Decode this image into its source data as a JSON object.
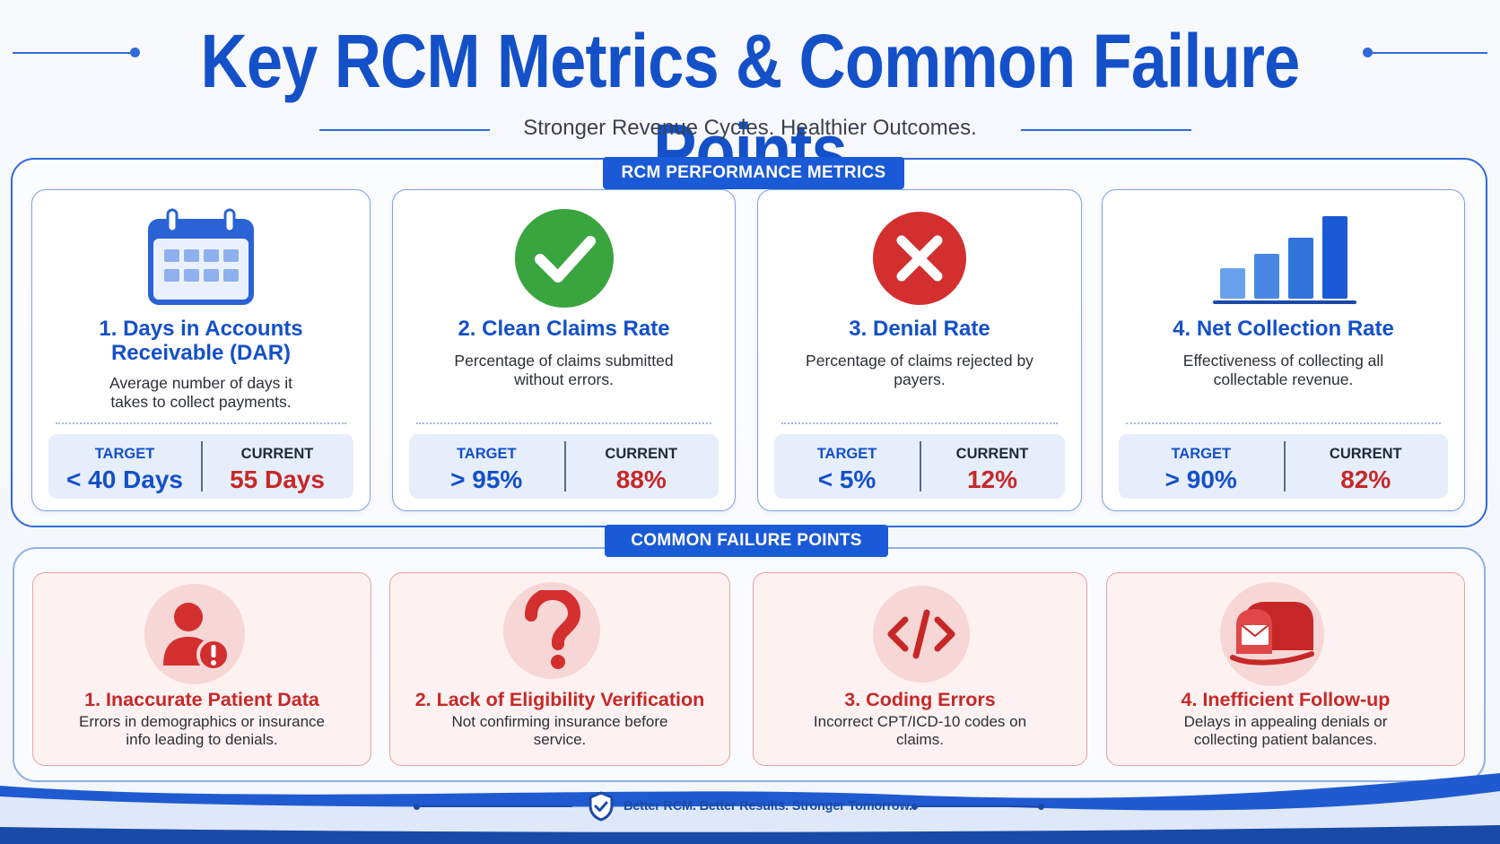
{
  "header": {
    "title": "Key RCM Metrics & Common Failure Points",
    "subtitle": "Stronger Revenue Cycles. Healthier Outcomes."
  },
  "metrics_section": {
    "label": "RCM PERFORMANCE METRICS",
    "target_label": "TARGET",
    "current_label": "CURRENT",
    "cards": [
      {
        "icon": "calendar-icon",
        "title": "1. Days in Accounts Receivable (DAR)",
        "description": "Average number of days it takes to collect payments.",
        "target": "< 40 Days",
        "current": "55 Days"
      },
      {
        "icon": "checkmark-icon",
        "title": "2. Clean Claims Rate",
        "description": "Percentage of claims submitted without errors.",
        "target": "> 95%",
        "current": "88%"
      },
      {
        "icon": "x-mark-icon",
        "title": "3. Denial Rate",
        "description": "Percentage of claims rejected by payers.",
        "target": "< 5%",
        "current": "12%"
      },
      {
        "icon": "bar-chart-icon",
        "title": "4. Net Collection Rate",
        "description": "Effectiveness of collecting all collectable revenue.",
        "target": "> 90%",
        "current": "82%"
      }
    ]
  },
  "failures_section": {
    "label": "COMMON FAILURE POINTS",
    "cards": [
      {
        "icon": "user-alert-icon",
        "title": "1. Inaccurate Patient Data",
        "description": "Errors in demographics or insurance info leading to denials."
      },
      {
        "icon": "question-mark-icon",
        "title": "2. Lack of Eligibility Verification",
        "description": "Not confirming insurance before service."
      },
      {
        "icon": "code-icon",
        "title": "3. Coding Errors",
        "description": "Incorrect CPT/ICD-10 codes on claims."
      },
      {
        "icon": "mailbox-icon",
        "title": "4. Inefficient Follow-up",
        "description": "Delays in appealing denials or collecting patient balances."
      }
    ]
  },
  "footer": {
    "icon": "shield-check-icon",
    "tagline": "Better RCM. Better Results. Stronger Tomorrow."
  },
  "colors": {
    "primary_blue": "#1450c8",
    "alert_red": "#c62828",
    "success_green": "#3aa53e"
  }
}
